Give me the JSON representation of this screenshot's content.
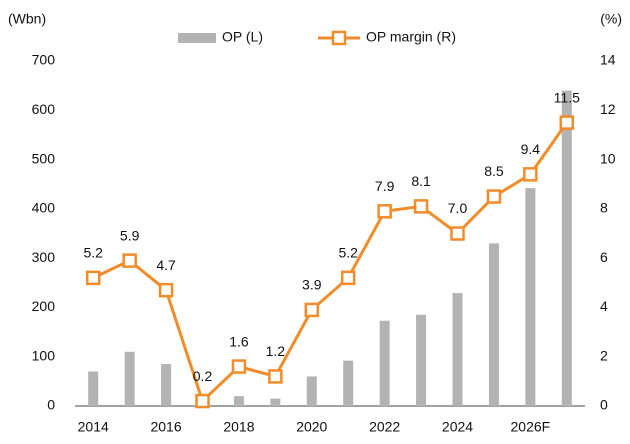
{
  "chart_data": {
    "type": "bar",
    "y_label": "(Wbn)",
    "y2_label": "(%)",
    "categories": [
      "2014",
      null,
      "2016",
      null,
      "2018",
      null,
      "2020",
      null,
      "2022",
      null,
      "2024",
      null,
      "2026F",
      null
    ],
    "series": [
      {
        "name": "OP (L)",
        "type": "bar",
        "color": "#b3b3b3",
        "values": [
          70,
          110,
          85,
          3,
          20,
          15,
          60,
          92,
          173,
          185,
          229,
          330,
          442,
          640
        ]
      },
      {
        "name": "OP margin (R)",
        "type": "line",
        "axis": "y2",
        "color": "#f28c28",
        "values": [
          5.2,
          5.9,
          4.7,
          0.2,
          1.6,
          1.2,
          3.9,
          5.2,
          7.9,
          8.1,
          7.0,
          8.5,
          9.4,
          11.5
        ],
        "value_labels": [
          "5.2",
          "5.9",
          "4.7",
          "0.2",
          "1.6",
          "1.2",
          "3.9",
          "5.2",
          "7.9",
          "8.1",
          "7.0",
          "8.5",
          "9.4",
          "11.5"
        ]
      }
    ],
    "ylim": [
      0,
      700
    ],
    "yticks": [
      0,
      100,
      200,
      300,
      400,
      500,
      600,
      700
    ],
    "y2lim": [
      0,
      14
    ],
    "y2ticks": [
      0,
      2,
      4,
      6,
      8,
      10,
      12,
      14
    ],
    "grid": false
  }
}
